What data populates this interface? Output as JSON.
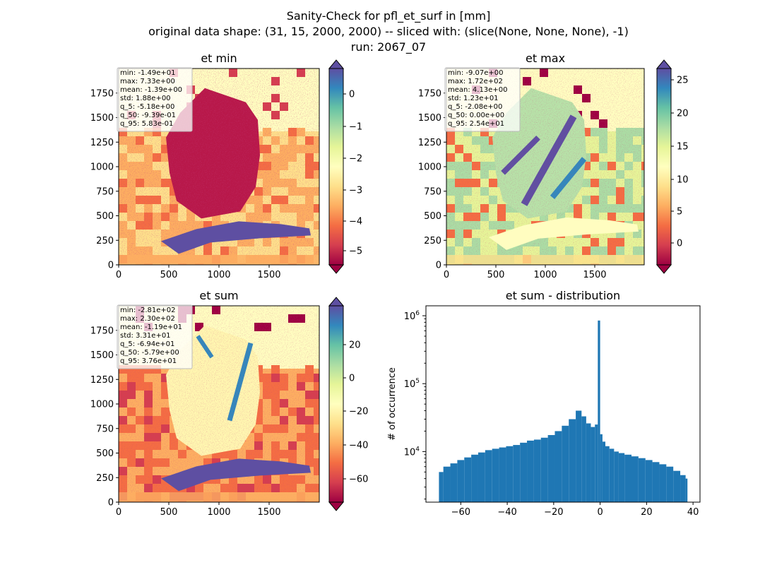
{
  "figure": {
    "title_line1": "Sanity-Check for pfl_et_surf in [mm]",
    "title_line2": "original data shape: (31, 15, 2000, 2000) -- sliced with: (slice(None, None, None), -1)",
    "title_line3": "run: 2067_07"
  },
  "chart_data": [
    {
      "type": "heatmap",
      "title": "et min",
      "xlim": [
        0,
        2000
      ],
      "ylim": [
        0,
        2000
      ],
      "xticks": [
        "0",
        "500",
        "1000",
        "1500"
      ],
      "yticks": [
        "0",
        "250",
        "500",
        "750",
        "1000",
        "1250",
        "1500",
        "1750"
      ],
      "colormap": "Spectral",
      "colorbar_range": [
        -5.18,
        0.583
      ],
      "colorbar_ticks": [
        "0",
        "−1",
        "−2",
        "−3",
        "−4",
        "−5"
      ],
      "stats": [
        "min: -1.49e+01",
        "max: 7.33e+00",
        "mean: -1.39e+00",
        "std: 1.88e+00",
        "q_5: -5.18e+00",
        "q_50: -9.39e-01",
        "q_95: 5.83e-01"
      ]
    },
    {
      "type": "heatmap",
      "title": "et max",
      "xlim": [
        0,
        2000
      ],
      "ylim": [
        0,
        2000
      ],
      "xticks": [
        "0",
        "500",
        "1000",
        "1500"
      ],
      "yticks": [
        "0",
        "250",
        "500",
        "750",
        "1000",
        "1250",
        "1500",
        "1750"
      ],
      "colormap": "Spectral",
      "colorbar_range": [
        -2.08,
        25.4
      ],
      "colorbar_ticks": [
        "25",
        "20",
        "15",
        "10",
        "5",
        "0"
      ],
      "stats": [
        "min: -9.07e+00",
        "max: 1.72e+02",
        "mean: 4.13e+00",
        "std: 1.23e+01",
        "q_5: -2.08e+00",
        "q_50: 0.00e+00",
        "q_95: 2.54e+01"
      ]
    },
    {
      "type": "heatmap",
      "title": "et sum",
      "xlim": [
        0,
        2000
      ],
      "ylim": [
        0,
        2000
      ],
      "xticks": [
        "0",
        "500",
        "1000",
        "1500"
      ],
      "yticks": [
        "0",
        "250",
        "500",
        "750",
        "1000",
        "1250",
        "1500",
        "1750"
      ],
      "colormap": "Spectral",
      "colorbar_range": [
        -69.4,
        37.6
      ],
      "colorbar_ticks": [
        "20",
        "0",
        "−20",
        "−40",
        "−60"
      ],
      "stats": [
        "min: -2.81e+02",
        "max: 2.30e+02",
        "mean: -1.19e+01",
        "std: 3.31e+01",
        "q_5: -6.94e+01",
        "q_50: -5.79e+00",
        "q_95: 3.76e+01"
      ]
    },
    {
      "type": "bar",
      "title": "et sum - distribution",
      "ylabel": "# of occurrence",
      "yscale": "log",
      "xlim": [
        -75,
        43
      ],
      "ylim": [
        1800,
        1400000
      ],
      "xticks": [
        "−60",
        "−40",
        "−20",
        "0",
        "20",
        "40"
      ],
      "color": "#1f77b4",
      "bin_range": [
        -69.4,
        37.6
      ],
      "x": [
        -69,
        -66,
        -63,
        -60,
        -57,
        -54,
        -51,
        -48,
        -45,
        -42,
        -39,
        -36,
        -33,
        -30,
        -27,
        -24,
        -21,
        -18,
        -15,
        -12,
        -9,
        -7,
        -5,
        -3,
        -1.5,
        -0.5,
        0.5,
        1.5,
        3,
        5,
        7,
        9,
        12,
        15,
        18,
        21,
        24,
        27,
        30,
        33,
        36,
        37.6
      ],
      "values": [
        5000,
        6000,
        6700,
        7500,
        8200,
        9000,
        9700,
        10500,
        11000,
        11500,
        12000,
        12500,
        13500,
        14500,
        15000,
        16000,
        17500,
        20000,
        24000,
        30000,
        40000,
        33000,
        26000,
        23000,
        25000,
        850000,
        18000,
        14000,
        12000,
        11000,
        10000,
        9500,
        9000,
        8500,
        8000,
        7500,
        7000,
        6500,
        6000,
        5200,
        4500,
        4000
      ]
    }
  ]
}
